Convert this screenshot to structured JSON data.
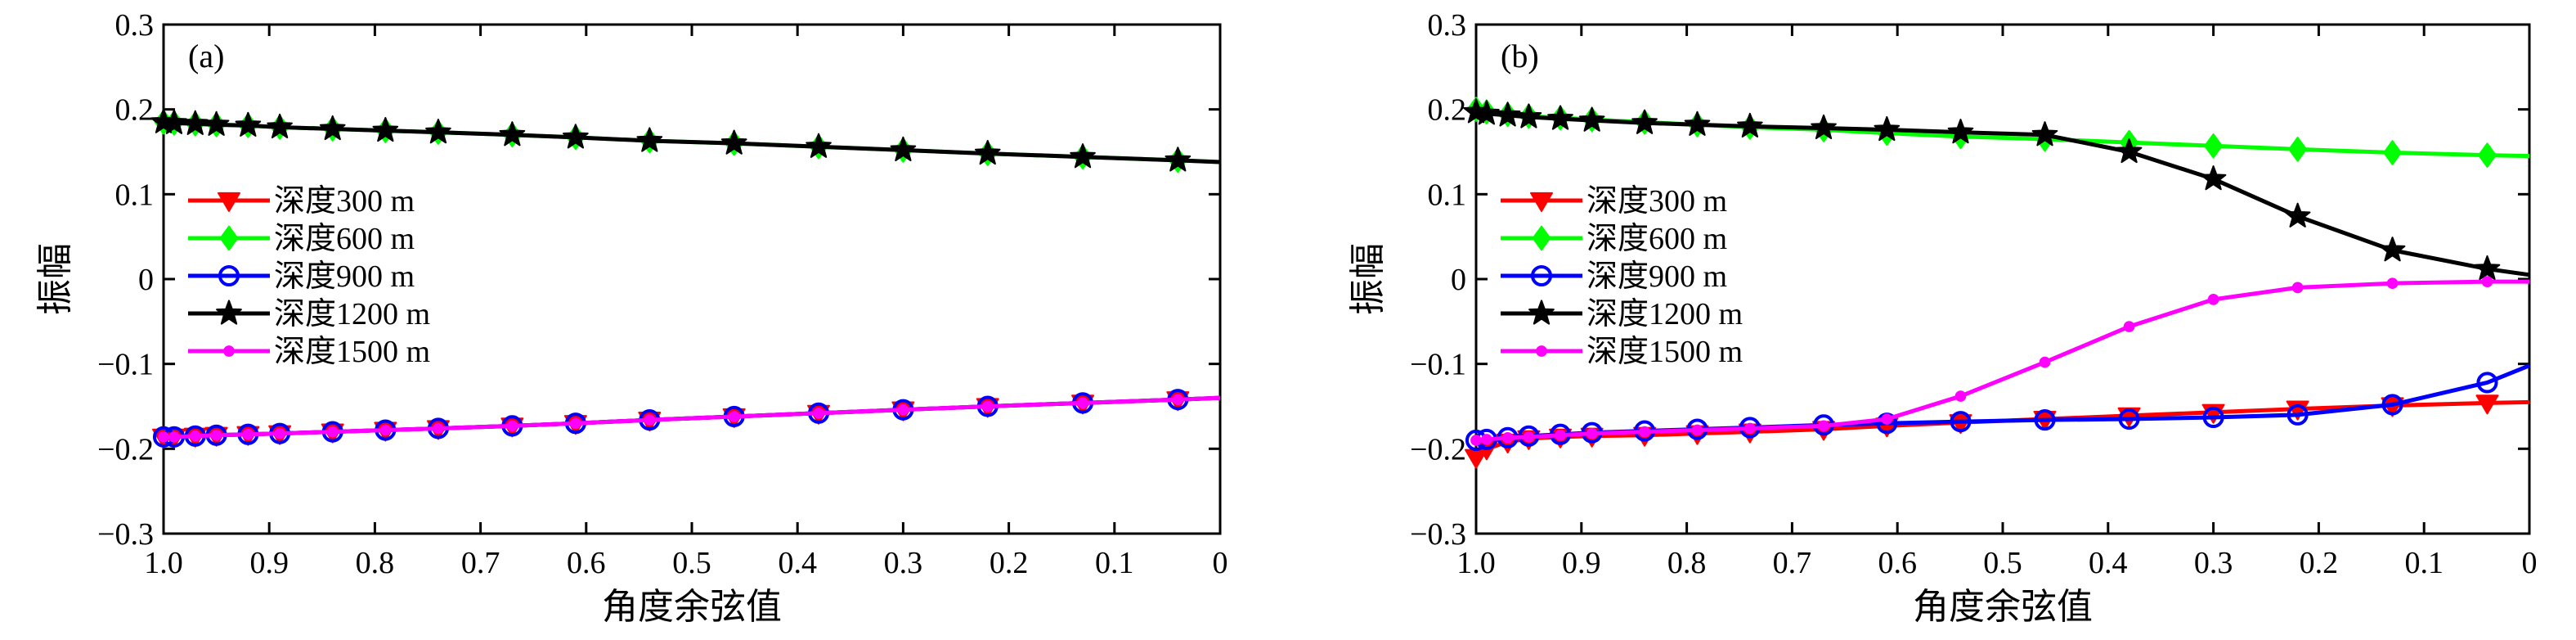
{
  "chart_data": [
    {
      "type": "line",
      "panel_label": "(a)",
      "xlabel": "角度余弦值",
      "ylabel": "振幅",
      "xlim": [
        1.0,
        0
      ],
      "ylim": [
        -0.3,
        0.3
      ],
      "x_reversed": true,
      "x_ticks": [
        1.0,
        0.9,
        0.8,
        0.7,
        0.6,
        0.5,
        0.4,
        0.3,
        0.2,
        0.1,
        0
      ],
      "x_tick_labels": [
        "1.0",
        "0.9",
        "0.8",
        "0.7",
        "0.6",
        "0.5",
        "0.4",
        "0.3",
        "0.2",
        "0.1",
        "0"
      ],
      "y_ticks": [
        -0.3,
        -0.2,
        -0.1,
        0,
        0.1,
        0.2,
        0.3
      ],
      "y_tick_labels": [
        "−0.3",
        "−0.2",
        "−0.1",
        "0",
        "0.1",
        "0.2",
        "0.3"
      ],
      "grid": false,
      "legend_position": "left",
      "x": [
        1.0,
        0.99,
        0.97,
        0.95,
        0.92,
        0.89,
        0.84,
        0.79,
        0.74,
        0.67,
        0.61,
        0.54,
        0.46,
        0.38,
        0.3,
        0.22,
        0.13,
        0.04,
        0
      ],
      "series": [
        {
          "name": "深度300 m",
          "color": "#ff0000",
          "marker": "triangle-down",
          "values": [
            -0.186,
            -0.186,
            -0.185,
            -0.184,
            -0.183,
            -0.182,
            -0.18,
            -0.178,
            -0.176,
            -0.173,
            -0.17,
            -0.166,
            -0.162,
            -0.158,
            -0.154,
            -0.15,
            -0.146,
            -0.142,
            -0.14
          ]
        },
        {
          "name": "深度600 m",
          "color": "#00ff00",
          "marker": "diamond",
          "values": [
            0.185,
            0.184,
            0.183,
            0.182,
            0.181,
            0.179,
            0.177,
            0.175,
            0.173,
            0.17,
            0.167,
            0.163,
            0.16,
            0.156,
            0.152,
            0.148,
            0.144,
            0.14,
            0.138
          ]
        },
        {
          "name": "深度900 m",
          "color": "#0000ff",
          "marker": "circle",
          "values": [
            -0.186,
            -0.186,
            -0.185,
            -0.184,
            -0.183,
            -0.182,
            -0.18,
            -0.178,
            -0.176,
            -0.173,
            -0.17,
            -0.166,
            -0.162,
            -0.158,
            -0.154,
            -0.15,
            -0.146,
            -0.142,
            -0.14
          ]
        },
        {
          "name": "深度1200 m",
          "color": "#000000",
          "marker": "star",
          "values": [
            0.185,
            0.184,
            0.183,
            0.182,
            0.181,
            0.179,
            0.177,
            0.175,
            0.173,
            0.17,
            0.167,
            0.163,
            0.16,
            0.156,
            0.152,
            0.148,
            0.144,
            0.14,
            0.138
          ]
        },
        {
          "name": "深度1500 m",
          "color": "#ff00ff",
          "marker": "dot",
          "values": [
            -0.186,
            -0.186,
            -0.185,
            -0.184,
            -0.183,
            -0.182,
            -0.18,
            -0.178,
            -0.176,
            -0.173,
            -0.17,
            -0.166,
            -0.162,
            -0.158,
            -0.154,
            -0.15,
            -0.146,
            -0.142,
            -0.14
          ]
        }
      ]
    },
    {
      "type": "line",
      "panel_label": "(b)",
      "xlabel": "角度余弦值",
      "ylabel": "振幅",
      "xlim": [
        1.0,
        0
      ],
      "ylim": [
        -0.3,
        0.3
      ],
      "x_reversed": true,
      "x_ticks": [
        1.0,
        0.9,
        0.8,
        0.7,
        0.6,
        0.5,
        0.4,
        0.3,
        0.2,
        0.1,
        0
      ],
      "x_tick_labels": [
        "1.0",
        "0.9",
        "0.8",
        "0.7",
        "0.6",
        "0.5",
        "0.4",
        "0.3",
        "0.2",
        "0.1",
        "0"
      ],
      "y_ticks": [
        -0.3,
        -0.2,
        -0.1,
        0,
        0.1,
        0.2,
        0.3
      ],
      "y_tick_labels": [
        "−0.3",
        "−0.2",
        "−0.1",
        "0",
        "0.1",
        "0.2",
        "0.3"
      ],
      "grid": false,
      "legend_position": "left",
      "x": [
        1.0,
        0.99,
        0.97,
        0.95,
        0.92,
        0.89,
        0.84,
        0.79,
        0.74,
        0.67,
        0.61,
        0.54,
        0.46,
        0.38,
        0.3,
        0.22,
        0.13,
        0.04,
        0
      ],
      "series": [
        {
          "name": "深度300 m",
          "color": "#ff0000",
          "marker": "triangle-down",
          "values": [
            -0.21,
            -0.2,
            -0.192,
            -0.188,
            -0.186,
            -0.185,
            -0.184,
            -0.182,
            -0.18,
            -0.177,
            -0.173,
            -0.169,
            -0.165,
            -0.161,
            -0.157,
            -0.153,
            -0.149,
            -0.146,
            -0.145
          ]
        },
        {
          "name": "深度600 m",
          "color": "#00ff00",
          "marker": "diamond",
          "values": [
            0.2,
            0.197,
            0.194,
            0.192,
            0.19,
            0.188,
            0.185,
            0.182,
            0.179,
            0.176,
            0.172,
            0.168,
            0.165,
            0.161,
            0.157,
            0.153,
            0.149,
            0.146,
            0.145
          ]
        },
        {
          "name": "深度900 m",
          "color": "#0000ff",
          "marker": "circle",
          "values": [
            -0.19,
            -0.189,
            -0.187,
            -0.185,
            -0.183,
            -0.181,
            -0.179,
            -0.177,
            -0.175,
            -0.172,
            -0.17,
            -0.168,
            -0.166,
            -0.165,
            -0.163,
            -0.16,
            -0.148,
            -0.122,
            -0.102
          ]
        },
        {
          "name": "深度1200 m",
          "color": "#000000",
          "marker": "star",
          "values": [
            0.197,
            0.195,
            0.193,
            0.191,
            0.189,
            0.187,
            0.184,
            0.182,
            0.18,
            0.178,
            0.176,
            0.173,
            0.17,
            0.15,
            0.118,
            0.074,
            0.034,
            0.012,
            0.005
          ]
        },
        {
          "name": "深度1500 m",
          "color": "#ff00ff",
          "marker": "dot",
          "values": [
            -0.19,
            -0.189,
            -0.187,
            -0.186,
            -0.184,
            -0.182,
            -0.18,
            -0.178,
            -0.176,
            -0.173,
            -0.165,
            -0.138,
            -0.098,
            -0.056,
            -0.024,
            -0.01,
            -0.005,
            -0.003,
            -0.003
          ]
        }
      ]
    }
  ]
}
